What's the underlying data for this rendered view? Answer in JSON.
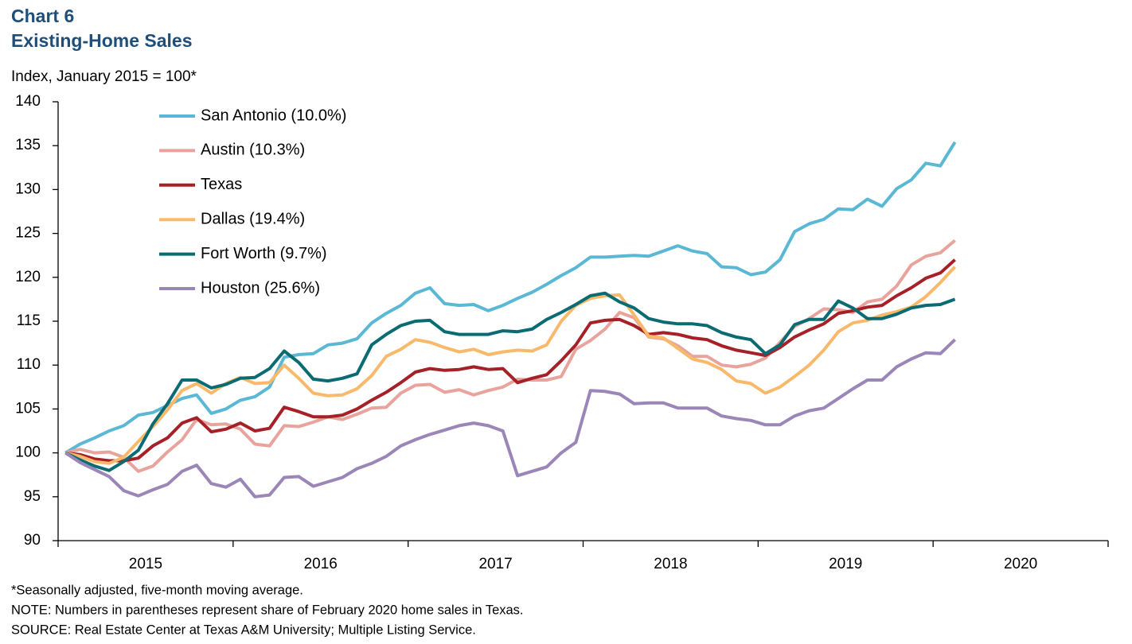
{
  "chart_data": {
    "type": "line",
    "title": "Chart 6",
    "subtitle": "Existing-Home Sales",
    "y_label": "Index, January 2015 = 100*",
    "notes": [
      "*Seasonally adjusted, five-month moving average.",
      "NOTE: Numbers in parentheses represent share of February 2020 home sales in Texas.",
      "SOURCE: Real Estate Center at Texas A&M University; Multiple Listing Service."
    ],
    "categories": [
      null,
      null,
      null,
      null,
      null,
      null,
      "2015",
      null,
      null,
      null,
      null,
      null,
      null,
      null,
      null,
      null,
      null,
      null,
      "2016",
      null,
      null,
      null,
      null,
      null,
      null,
      null,
      null,
      null,
      null,
      null,
      "2017",
      null,
      null,
      null,
      null,
      null,
      null,
      null,
      null,
      null,
      null,
      null,
      "2018",
      null,
      null,
      null,
      null,
      null,
      null,
      null,
      null,
      null,
      null,
      null,
      "2019",
      null,
      null,
      null,
      null,
      null,
      null,
      null,
      null,
      null,
      null,
      null,
      "2020",
      null,
      null,
      null,
      null,
      null
    ],
    "ylim": [
      90,
      140
    ],
    "yticks": [
      90,
      95,
      100,
      105,
      110,
      115,
      120,
      125,
      130,
      135,
      140
    ],
    "grid": false,
    "legend": "top-left",
    "series": [
      {
        "name": "San Antonio (10.0%)",
        "color": "#5bb8d4",
        "values": [
          100,
          101,
          101.7,
          102.5,
          103.1,
          104.3,
          104.6,
          105.4,
          106.2,
          106.6,
          104.5,
          105,
          106,
          106.4,
          107.5,
          110.9,
          111.2,
          111.3,
          112.3,
          112.5,
          113,
          114.8,
          115.9,
          116.8,
          118.2,
          118.8,
          117,
          116.8,
          116.9,
          116.2,
          116.8,
          117.6,
          118.3,
          119.2,
          120.2,
          121.1,
          122.3,
          122.3,
          122.4,
          122.5,
          122.4,
          123,
          123.6,
          123,
          122.7,
          121.2,
          121.1,
          120.3,
          120.6,
          122,
          125.2,
          126.1,
          126.6,
          127.8,
          127.7,
          128.9,
          128.1,
          130.1,
          131.1,
          133,
          132.7,
          135.4,
          null,
          null,
          null,
          null,
          null,
          null,
          null,
          null,
          null,
          null
        ]
      },
      {
        "name": "Austin (10.3%)",
        "color": "#e8a49c",
        "values": [
          100,
          100.4,
          100,
          100.1,
          99.5,
          97.9,
          98.5,
          100.1,
          101.5,
          103.8,
          103.2,
          103.3,
          102.7,
          101,
          100.8,
          103.1,
          103,
          103.5,
          104.1,
          103.8,
          104.4,
          105.1,
          105.2,
          106.8,
          107.7,
          107.8,
          106.9,
          107.2,
          106.6,
          107.1,
          107.5,
          108.4,
          108.3,
          108.3,
          108.7,
          111.8,
          112.8,
          114.1,
          116,
          115.4,
          113.2,
          113,
          112.2,
          111,
          111,
          110,
          109.8,
          110.1,
          110.8,
          112.6,
          114.4,
          115.3,
          116.4,
          116.3,
          116,
          117.2,
          117.5,
          119,
          121.4,
          122.4,
          122.8,
          124.2,
          null,
          null,
          null,
          null,
          null,
          null,
          null,
          null,
          null,
          null
        ]
      },
      {
        "name": "Texas",
        "color": "#a52127",
        "values": [
          100,
          99.8,
          99.3,
          99.1,
          99.1,
          99.4,
          100.8,
          101.7,
          103.4,
          104,
          102.4,
          102.7,
          103.4,
          102.5,
          102.8,
          105.2,
          104.7,
          104.1,
          104.1,
          104.3,
          105,
          106,
          106.9,
          108,
          109.2,
          109.6,
          109.4,
          109.5,
          109.8,
          109.5,
          109.6,
          108,
          108.5,
          108.9,
          110.5,
          112.3,
          114.8,
          115.1,
          115.2,
          114.5,
          113.5,
          113.7,
          113.5,
          113.1,
          112.9,
          112.2,
          111.7,
          111.4,
          111.1,
          112,
          113.2,
          114,
          114.7,
          115.9,
          116.2,
          116.6,
          116.8,
          117.9,
          118.8,
          119.9,
          120.5,
          122,
          null,
          null,
          null,
          null,
          null,
          null,
          null,
          null,
          null,
          null
        ]
      },
      {
        "name": "Dallas (19.4%)",
        "color": "#f9b96b",
        "values": [
          100,
          99.6,
          99,
          98.8,
          99.5,
          101.3,
          103,
          104.9,
          107.1,
          107.9,
          106.8,
          107.9,
          108.6,
          107.9,
          108,
          110,
          108.5,
          106.8,
          106.5,
          106.6,
          107.3,
          108.8,
          111,
          111.8,
          112.9,
          112.6,
          112,
          111.5,
          111.8,
          111.2,
          111.5,
          111.7,
          111.6,
          112.3,
          115,
          116.8,
          117.6,
          117.9,
          118,
          115.7,
          113.3,
          113.1,
          111.9,
          110.7,
          110.3,
          109.5,
          108.2,
          107.9,
          106.8,
          107.5,
          108.7,
          110,
          111.7,
          113.8,
          114.8,
          115.1,
          115.7,
          116.1,
          116.6,
          117.8,
          119.4,
          121.2,
          null,
          null,
          null,
          null,
          null,
          null,
          null,
          null,
          null,
          null
        ]
      },
      {
        "name": "Fort Worth (9.7%)",
        "color": "#0a6b73",
        "values": [
          100,
          99.2,
          98.5,
          98,
          99,
          100.3,
          103.3,
          105.6,
          108.3,
          108.3,
          107.4,
          107.8,
          108.5,
          108.6,
          109.6,
          111.6,
          110.3,
          108.4,
          108.2,
          108.5,
          109,
          112.3,
          113.5,
          114.5,
          115,
          115.1,
          113.8,
          113.5,
          113.5,
          113.5,
          113.9,
          113.8,
          114.1,
          115.2,
          116,
          116.9,
          117.9,
          118.2,
          117.2,
          116.5,
          115.3,
          114.9,
          114.7,
          114.7,
          114.5,
          113.7,
          113.2,
          112.9,
          111.3,
          112.3,
          114.6,
          115.2,
          115.2,
          117.3,
          116.5,
          115.3,
          115.3,
          115.8,
          116.5,
          116.8,
          116.9,
          117.5,
          null,
          null,
          null,
          null,
          null,
          null,
          null,
          null,
          null,
          null
        ]
      },
      {
        "name": "Houston (25.6%)",
        "color": "#9b86b8",
        "values": [
          100,
          98.9,
          98.1,
          97.3,
          95.7,
          95.1,
          95.8,
          96.4,
          97.9,
          98.6,
          96.5,
          96.1,
          97,
          95,
          95.2,
          97.2,
          97.3,
          96.2,
          96.7,
          97.2,
          98.2,
          98.8,
          99.6,
          100.8,
          101.5,
          102.1,
          102.6,
          103.1,
          103.4,
          103.1,
          102.5,
          97.4,
          97.9,
          98.4,
          100,
          101.2,
          107.1,
          107,
          106.7,
          105.6,
          105.7,
          105.7,
          105.1,
          105.1,
          105.1,
          104.2,
          103.9,
          103.7,
          103.2,
          103.2,
          104.2,
          104.8,
          105.1,
          106.2,
          107.3,
          108.3,
          108.3,
          109.8,
          110.7,
          111.4,
          111.3,
          112.9,
          null,
          null,
          null,
          null,
          null,
          null,
          null,
          null,
          null,
          null
        ]
      }
    ]
  }
}
